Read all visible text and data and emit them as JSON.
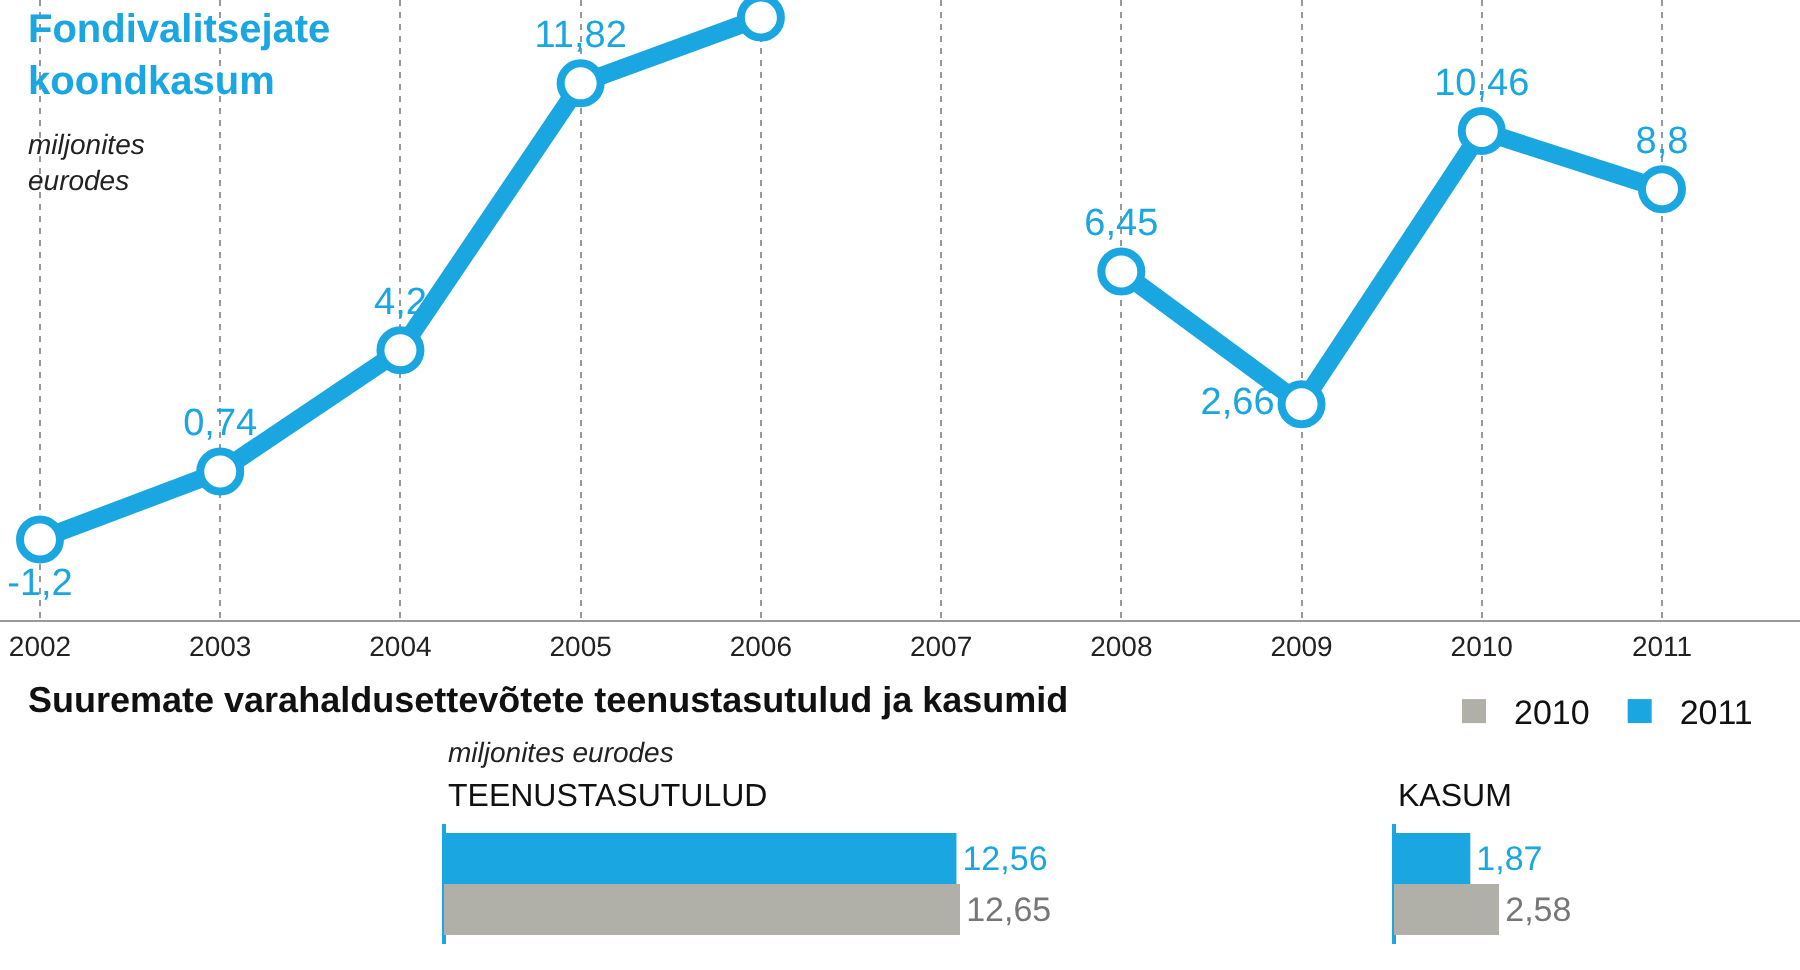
{
  "chart_data": [
    {
      "type": "line",
      "title": "Fondivalitsejate koondkasum",
      "subtitle": "miljonites eurodes",
      "categories": [
        "2002",
        "2003",
        "2004",
        "2005",
        "2006",
        "2007",
        "2008",
        "2009",
        "2010",
        "2011"
      ],
      "series": [
        {
          "color": "#1aa6e0",
          "values": [
            -1.2,
            0.74,
            4.2,
            11.82,
            13.7,
            null,
            6.45,
            2.66,
            10.46,
            8.8
          ],
          "value_labels": [
            "-1,2",
            "0,74",
            "4,2",
            "11,82",
            null,
            null,
            "6,45",
            "2,66",
            "10,46",
            "8,8"
          ]
        }
      ],
      "ylim": [
        -3.5,
        14.2
      ],
      "tick_labels": "x",
      "grid": "x",
      "marker": "circle",
      "line_style": "solid"
    },
    {
      "type": "bar",
      "orientation": "horizontal",
      "title": "Suuremate varahaldusettevõtete teenustasutulud ja kasumid",
      "subtitle": "miljonites eurodes",
      "annotations": [
        "TEENUSTASUTULUD"
      ],
      "categories": [
        null
      ],
      "series": [
        {
          "name": "2011",
          "color": "#1aa6e0",
          "values": [
            12.56
          ],
          "value_labels": [
            "12,56"
          ]
        },
        {
          "name": "2010",
          "color": "#b0b0a8",
          "values": [
            12.65
          ],
          "value_labels": [
            "12,65"
          ]
        }
      ],
      "tick_labels": false,
      "legend": "top right"
    },
    {
      "type": "bar",
      "orientation": "horizontal",
      "title": "KASUM",
      "categories": [
        null
      ],
      "series": [
        {
          "color": "#1aa6e0",
          "values": [
            1.87
          ],
          "value_labels": [
            "1,87"
          ]
        },
        {
          "color": "#b0b0a8",
          "values": [
            2.58
          ],
          "value_labels": [
            "2,58"
          ]
        }
      ],
      "tick_labels": false
    }
  ]
}
